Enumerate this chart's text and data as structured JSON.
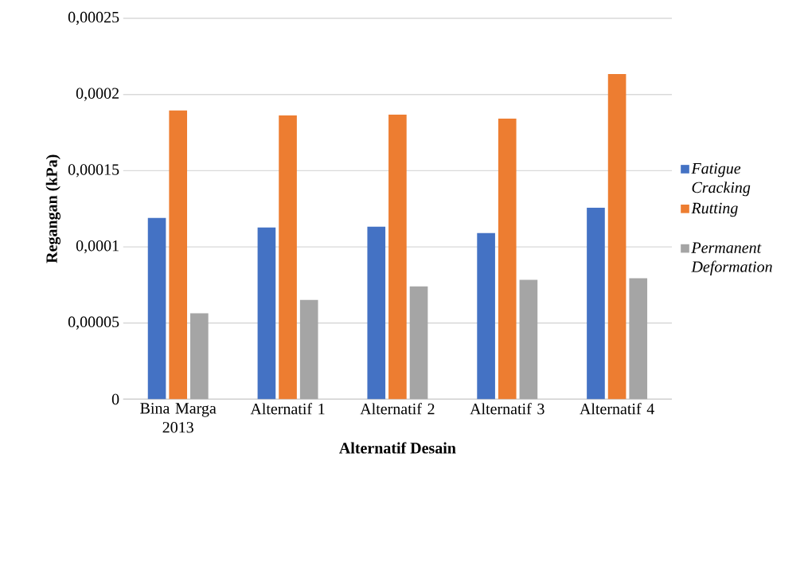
{
  "chart_data": {
    "type": "bar",
    "xlabel": "Alternatif Desain",
    "ylabel": "Regangan (kPa)",
    "categories": [
      "Bina Marga 2013",
      "Alternatif 1",
      "Alternatif 2",
      "Alternatif 3",
      "Alternatif 4"
    ],
    "series": [
      {
        "name": "Fatigue Cracking",
        "color": "#4472c4",
        "values": [
          0.000119,
          0.0001127,
          0.0001133,
          0.0001091,
          0.0001258
        ]
      },
      {
        "name": "Rutting",
        "color": "#ed7d31",
        "values": [
          0.0001895,
          0.0001863,
          0.0001868,
          0.0001842,
          0.0002135
        ]
      },
      {
        "name": "Permanent Deformation",
        "color": "#a5a5a5",
        "values": [
          5.64e-05,
          6.52e-05,
          7.41e-05,
          7.83e-05,
          7.94e-05
        ]
      }
    ],
    "ylim": [
      0,
      0.00025
    ],
    "yticks": [
      0,
      {
        "value": 5e-05,
        "label": "0,00005"
      },
      {
        "value": 0.0001,
        "label": "0,0001"
      },
      {
        "value": 0.00015,
        "label": "0,00015"
      },
      {
        "value": 0.0002,
        "label": "0,0002"
      },
      {
        "value": 0.00025,
        "label": "0,00025"
      }
    ],
    "grid": "y",
    "legend": "right"
  }
}
